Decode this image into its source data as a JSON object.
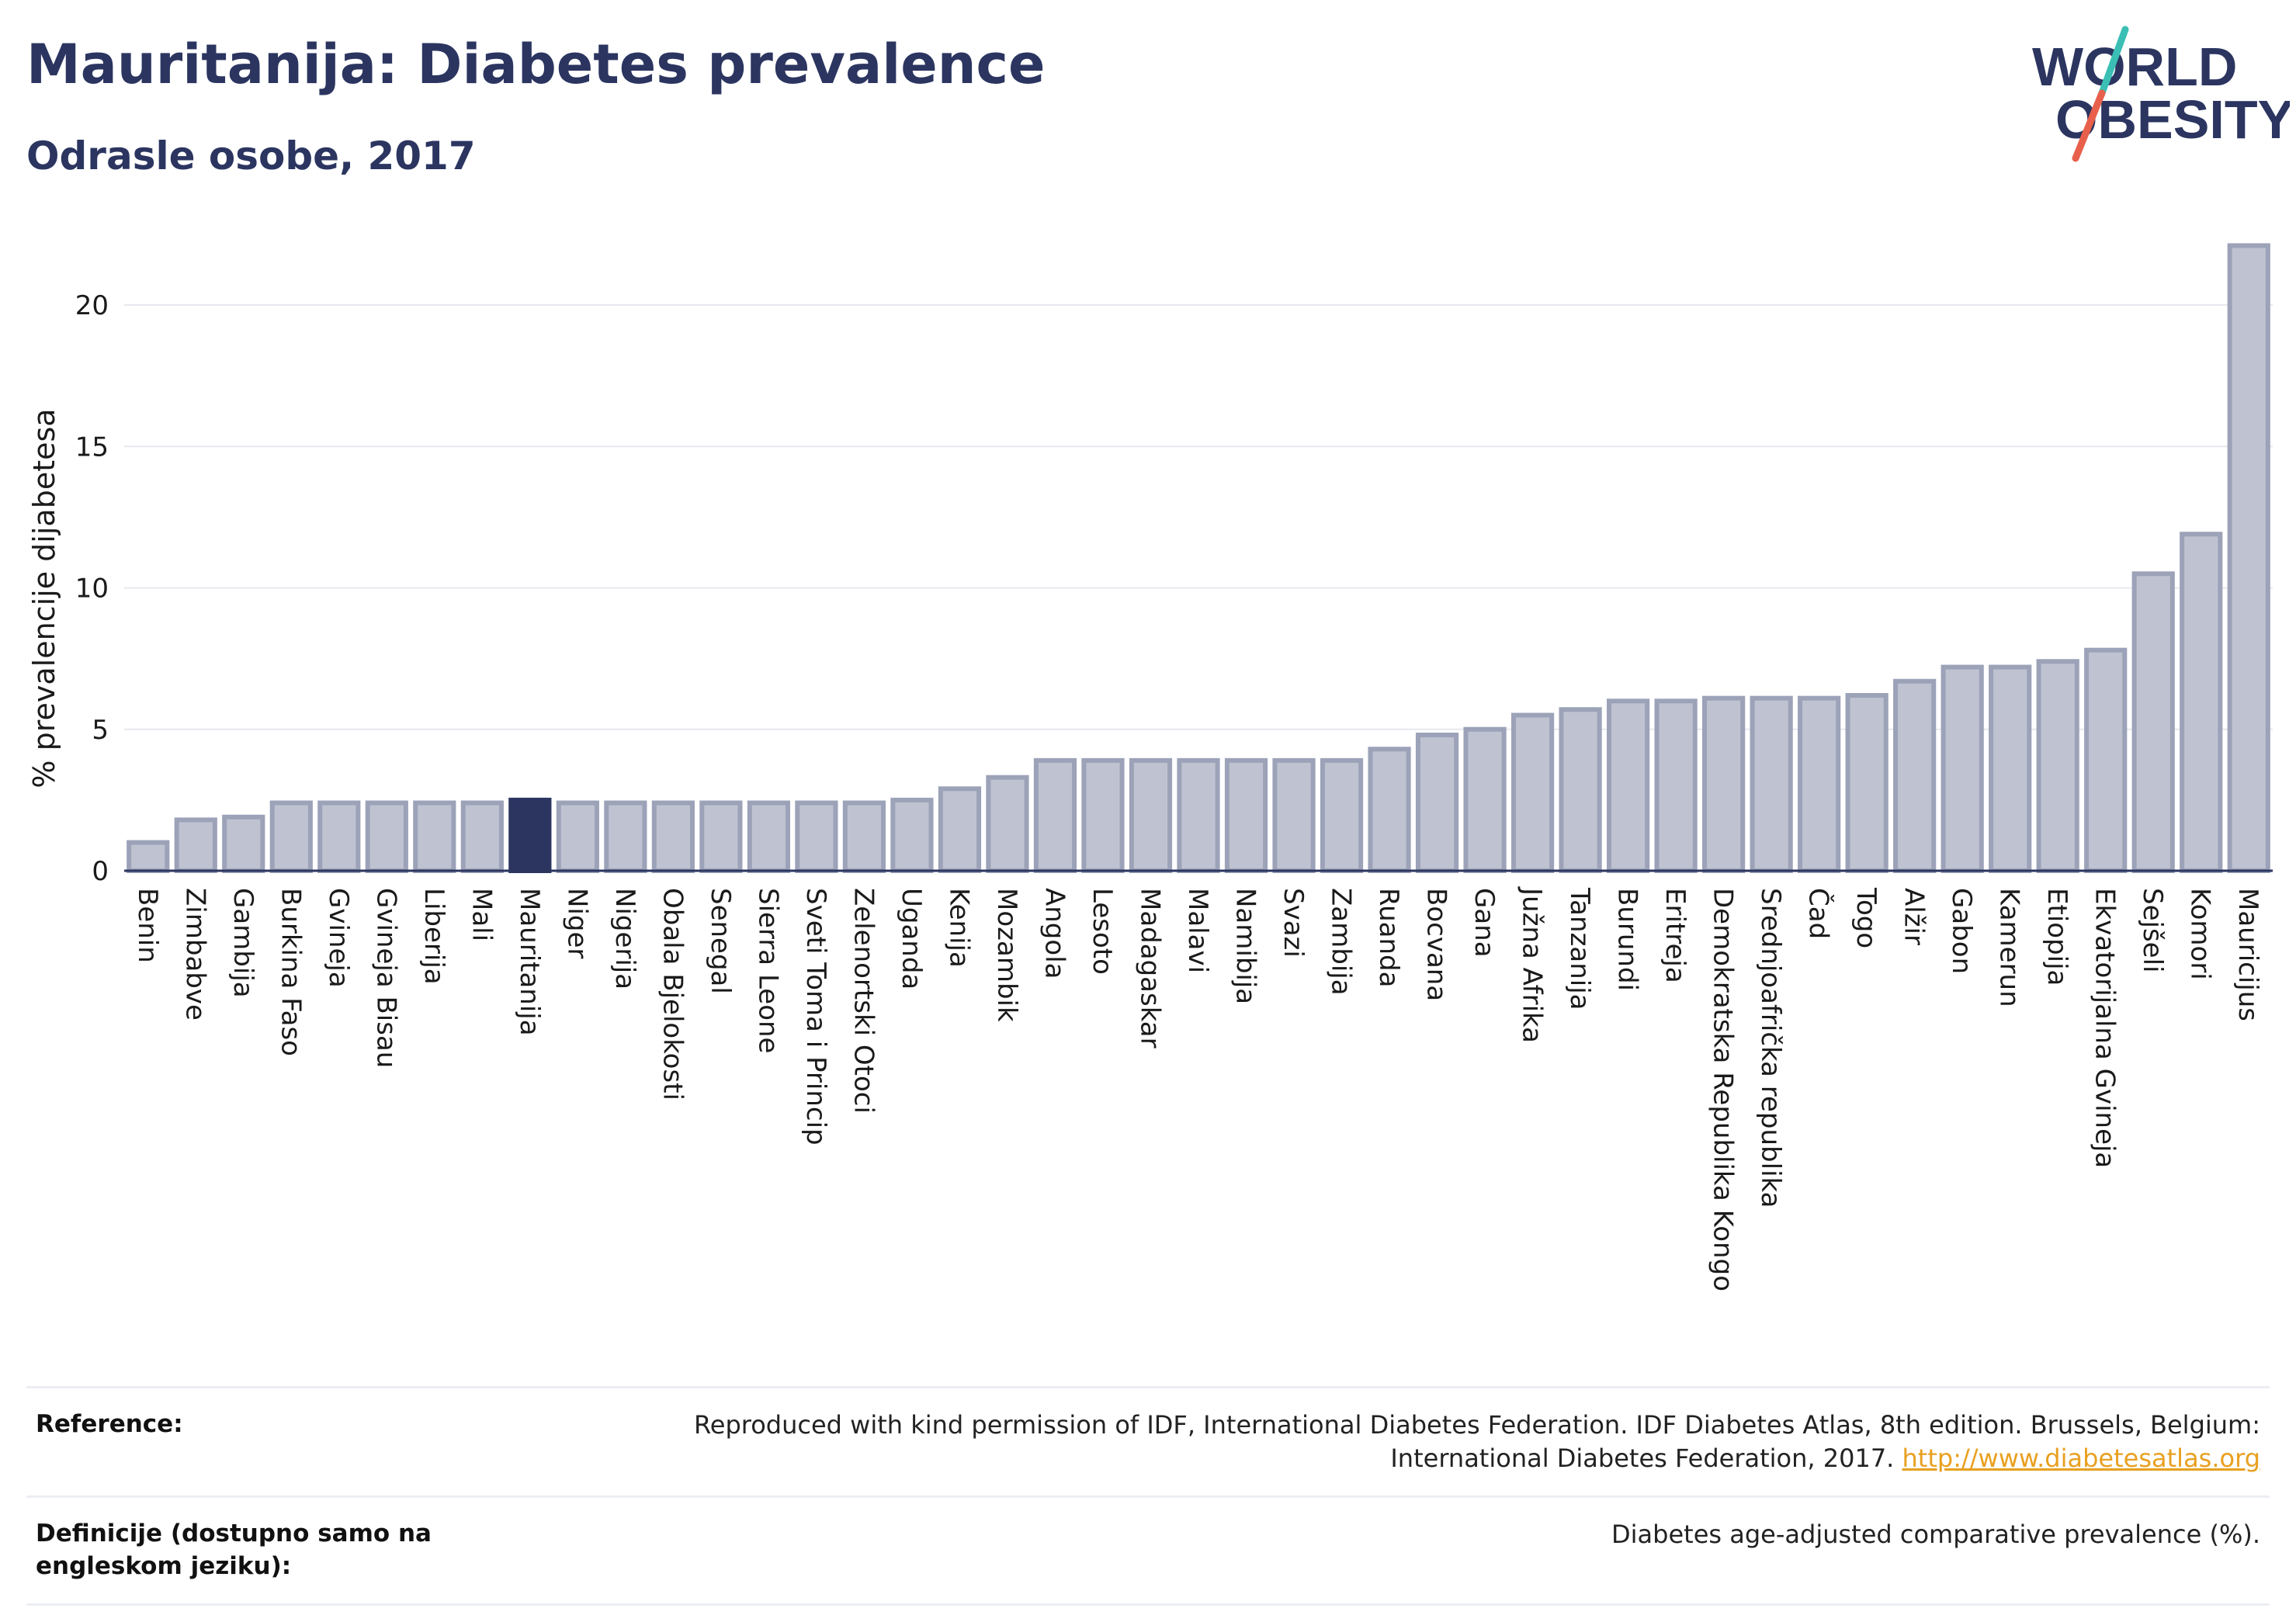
{
  "header": {
    "title": "Mauritanija: Diabetes prevalence",
    "subtitle": "Odrasle osobe, 2017"
  },
  "logo": {
    "line1": "WORLD",
    "line2": "OBESITY",
    "colors": {
      "text": "#2b3560",
      "slash_red": "#e8604c",
      "slash_teal": "#3bbfb5"
    }
  },
  "chart_data": {
    "type": "bar",
    "title": "Mauritanija: Diabetes prevalence",
    "subtitle": "Odrasle osobe, 2017",
    "ylabel": "% prevalencije dijabetesa",
    "xlabel": "",
    "ylim": [
      0,
      22.5
    ],
    "yticks": [
      0,
      5,
      10,
      15,
      20
    ],
    "grid": true,
    "highlight": "Mauritanija",
    "colors": {
      "bar": "#bfc3d1",
      "bar_edge": "#9ca2b8",
      "highlight": "#2b3560",
      "grid": "#e6e8ee",
      "axis": "#2b3560"
    },
    "categories": [
      "Benin",
      "Zimbabve",
      "Gambija",
      "Burkina Faso",
      "Gvineja",
      "Gvineja Bisau",
      "Liberija",
      "Mali",
      "Mauritanija",
      "Niger",
      "Nigerija",
      "Obala Bjelokosti",
      "Senegal",
      "Sierra Leone",
      "Sveti Toma i Princip",
      "Zelenortski Otoci",
      "Uganda",
      "Kenija",
      "Mozambik",
      "Angola",
      "Lesoto",
      "Madagaskar",
      "Malavi",
      "Namibija",
      "Svazi",
      "Zambija",
      "Ruanda",
      "Bocvana",
      "Gana",
      "Južna Afrika",
      "Tanzanija",
      "Burundi",
      "Eritreja",
      "Demokratska Republika Kongo",
      "Srednjoafrička republika",
      "Čad",
      "Togo",
      "Alžir",
      "Gabon",
      "Kamerun",
      "Etiopija",
      "Ekvatorijalna Gvineja",
      "Sejšeli",
      "Komori",
      "Mauricijus"
    ],
    "values": [
      1.0,
      1.8,
      1.9,
      2.4,
      2.4,
      2.4,
      2.4,
      2.4,
      2.5,
      2.4,
      2.4,
      2.4,
      2.4,
      2.4,
      2.4,
      2.4,
      2.5,
      2.9,
      3.3,
      3.9,
      3.9,
      3.9,
      3.9,
      3.9,
      3.9,
      3.9,
      4.3,
      4.8,
      5.0,
      5.5,
      5.7,
      6.0,
      6.0,
      6.1,
      6.1,
      6.1,
      6.2,
      6.7,
      7.2,
      7.2,
      7.4,
      7.8,
      10.5,
      11.9,
      22.1
    ]
  },
  "reference": {
    "rows": [
      {
        "key": "Reference:",
        "value": "Reproduced with kind permission of IDF, International Diabetes Federation. IDF Diabetes Atlas, 8th edition. Brussels, Belgium: International Diabetes Federation, 2017.",
        "link": "http://www.diabetesatlas.org"
      },
      {
        "key": "Definicije (dostupno samo na engleskom jeziku):",
        "value": "Diabetes age-adjusted comparative prevalence (%)."
      }
    ]
  }
}
